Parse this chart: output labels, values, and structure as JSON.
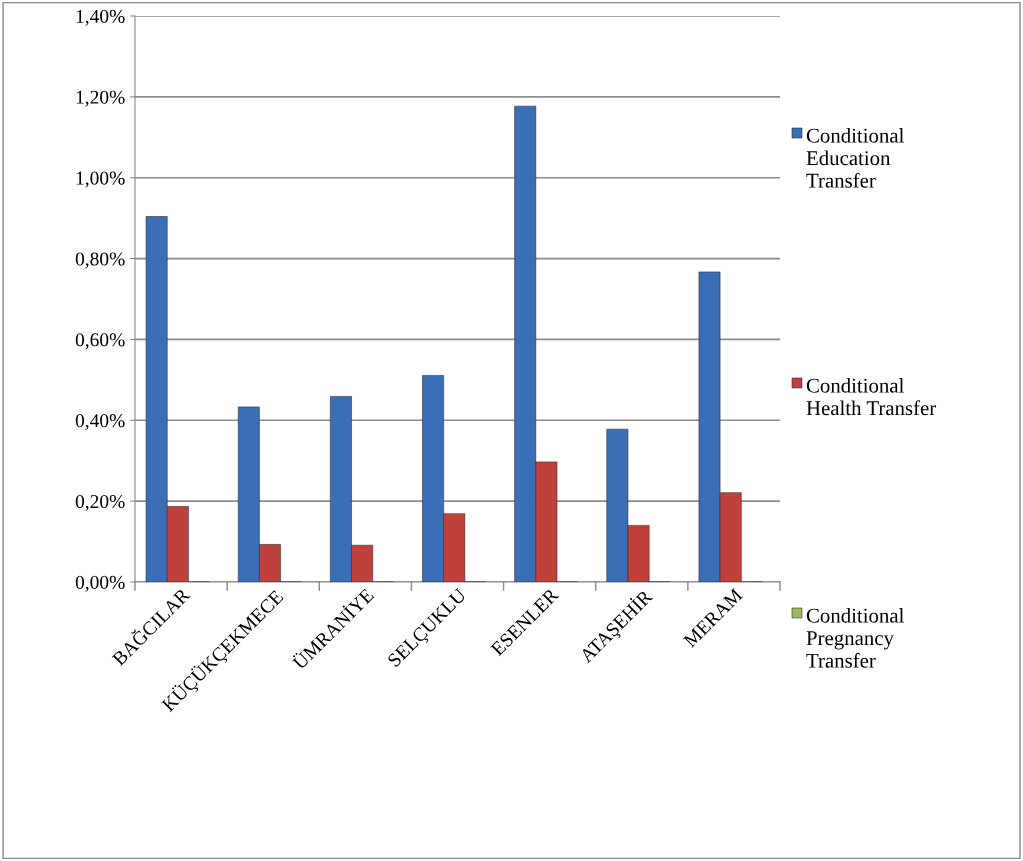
{
  "chart_data": {
    "type": "bar",
    "categories": [
      "BAĞCILAR",
      "KÜÇÜKÇEKMECE",
      "ÜMRANİYE",
      "SELÇUKLU",
      "ESENLER",
      "ATAŞEHİR",
      "MERAM"
    ],
    "series": [
      {
        "name": "Conditional Education Transfer",
        "color": "#3a6fb8",
        "values": [
          0.904,
          0.433,
          0.459,
          0.511,
          1.177,
          0.378,
          0.767
        ]
      },
      {
        "name": "Conditional Health Transfer",
        "color": "#c0403d",
        "values": [
          0.187,
          0.093,
          0.091,
          0.169,
          0.297,
          0.14,
          0.221
        ]
      },
      {
        "name": "Conditional Pregnancy Transfer",
        "color": "#9bbb59",
        "values": [
          null,
          null,
          null,
          null,
          null,
          null,
          null
        ]
      }
    ],
    "ylim": [
      0,
      1.4
    ],
    "yticks": [
      {
        "value": 0,
        "label": "0,00%"
      },
      {
        "value": 0.2,
        "label": "0,20%"
      },
      {
        "value": 0.4,
        "label": "0,40%"
      },
      {
        "value": 0.6,
        "label": "0,60%"
      },
      {
        "value": 0.8,
        "label": "0,80%"
      },
      {
        "value": 1.0,
        "label": "1,00%"
      },
      {
        "value": 1.2,
        "label": "1,20%"
      },
      {
        "value": 1.4,
        "label": "1,40%"
      }
    ],
    "grid": "y",
    "legend": "right"
  }
}
